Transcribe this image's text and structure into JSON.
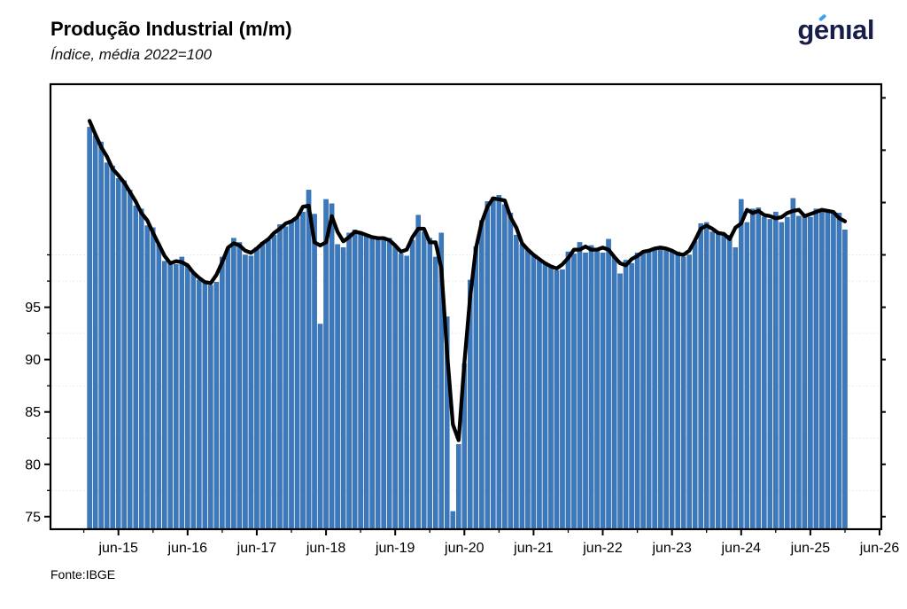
{
  "header": {
    "title": "Produção Industrial (m/m)",
    "subtitle": "Índice, média 2022=100",
    "logo_text": "genıal"
  },
  "footer": {
    "source": "Fonte:IBGE"
  },
  "colors": {
    "bar": "#3b79bc",
    "bar_edge": "#2d629e",
    "line": "#000000",
    "logo_navy": "#191d49",
    "logo_accent": "#3fa0ee",
    "gridline": "#e3e3e3",
    "axis": "#000000"
  },
  "chart_data": {
    "type": "bar",
    "overlay_type": "line",
    "title": "Produção Industrial (m/m)",
    "subtitle": "Índice, média 2022=100",
    "source": "Fonte:IBGE",
    "x_frequency": "monthly",
    "x_range": "jan-2015 to dez-2025",
    "x_tick_labels": [
      "jun-15",
      "jun-16",
      "jun-17",
      "jun-18",
      "jun-19",
      "jun-20",
      "jun-21",
      "jun-22",
      "jun-23",
      "jun-24",
      "jun-25",
      "jun-26"
    ],
    "y_tick_labels": [
      75,
      80,
      85,
      90,
      95
    ],
    "y_minor_ticks": [
      77.5,
      82.5,
      87.5,
      92.5,
      97.5,
      100
    ],
    "y_right_ticks": [
      75,
      80,
      85,
      90,
      95,
      100,
      105,
      110,
      115
    ],
    "gridlines_at": [
      77.5,
      82.5,
      87.5,
      92.5,
      97.5,
      100
    ],
    "ylim": [
      73.8,
      116.3
    ],
    "grid": "faint dotted horizontal",
    "legend_position": "none",
    "series": [
      {
        "name": "indice_mensal",
        "type": "bar",
        "values": [
          112.2,
          111.4,
          110.8,
          108.8,
          108.5,
          107.3,
          107.1,
          106.2,
          104.7,
          104.4,
          102.8,
          102.6,
          101.0,
          99.4,
          99.2,
          99.1,
          99.8,
          99.0,
          98.3,
          97.6,
          97.5,
          97.1,
          97.4,
          99.8,
          100.6,
          101.6,
          101.2,
          100.0,
          99.9,
          100.7,
          101.2,
          101.4,
          101.9,
          102.9,
          102.7,
          103.3,
          103.5,
          104.1,
          106.2,
          103.9,
          93.4,
          105.3,
          104.9,
          101.0,
          100.7,
          102.1,
          102.4,
          102.1,
          101.8,
          101.7,
          101.5,
          101.6,
          101.6,
          100.9,
          100.1,
          99.9,
          101.4,
          103.8,
          102.2,
          101.6,
          99.8,
          102.1,
          94.1,
          75.5,
          81.9,
          89.6,
          97.6,
          100.8,
          103.3,
          105.1,
          105.5,
          105.7,
          104.8,
          104.0,
          101.9,
          101.0,
          100.5,
          100.0,
          99.5,
          99.3,
          98.9,
          98.5,
          98.6,
          100.3,
          100.1,
          101.2,
          100.2,
          100.9,
          100.5,
          100.2,
          101.5,
          99.8,
          98.2,
          99.5,
          99.2,
          100.2,
          100.2,
          100.5,
          100.6,
          100.8,
          100.7,
          100.3,
          100.3,
          99.8,
          100.0,
          101.3,
          103.0,
          103.1,
          102.2,
          102.2,
          101.9,
          101.9,
          100.7,
          105.3,
          103.1,
          104.4,
          104.5,
          103.6,
          103.4,
          104.1,
          103.1,
          103.6,
          105.4,
          103.7,
          103.8,
          103.6,
          104.4,
          104.3,
          104.3,
          104.0,
          104.0,
          102.4
        ]
      },
      {
        "name": "tendencia_suavizada",
        "type": "line",
        "values": [
          112.8,
          111.5,
          110.3,
          109.4,
          108.2,
          107.6,
          106.9,
          106.0,
          105.1,
          104.0,
          103.3,
          102.1,
          101.0,
          99.9,
          99.2,
          99.4,
          99.3,
          99.0,
          98.3,
          97.8,
          97.4,
          97.3,
          98.1,
          99.3,
          100.7,
          101.1,
          100.9,
          100.4,
          100.2,
          100.6,
          101.1,
          101.5,
          102.1,
          102.5,
          103.0,
          103.2,
          103.6,
          104.6,
          104.7,
          101.2,
          100.9,
          101.2,
          103.7,
          102.2,
          101.3,
          101.7,
          102.2,
          102.1,
          101.9,
          101.7,
          101.6,
          101.6,
          101.4,
          100.9,
          100.3,
          100.5,
          101.7,
          102.5,
          102.5,
          101.2,
          101.2,
          98.7,
          90.6,
          83.8,
          82.3,
          89.7,
          96.0,
          100.6,
          103.1,
          104.6,
          105.4,
          105.3,
          105.2,
          103.6,
          102.6,
          101.1,
          100.5,
          100.0,
          99.6,
          99.2,
          98.9,
          98.7,
          99.1,
          99.7,
          100.5,
          100.5,
          100.8,
          100.5,
          100.5,
          100.7,
          100.5,
          99.8,
          99.2,
          99.0,
          99.6,
          99.9,
          100.3,
          100.4,
          100.6,
          100.7,
          100.6,
          100.4,
          100.1,
          100.0,
          100.4,
          101.4,
          102.5,
          102.8,
          102.5,
          102.1,
          102.0,
          101.5,
          102.6,
          103.0,
          104.3,
          104.0,
          104.2,
          103.8,
          103.7,
          103.5,
          103.6,
          104.0,
          104.2,
          104.3,
          103.7,
          103.9,
          104.1,
          104.3,
          104.2,
          104.1,
          103.5,
          103.2
        ]
      }
    ]
  }
}
